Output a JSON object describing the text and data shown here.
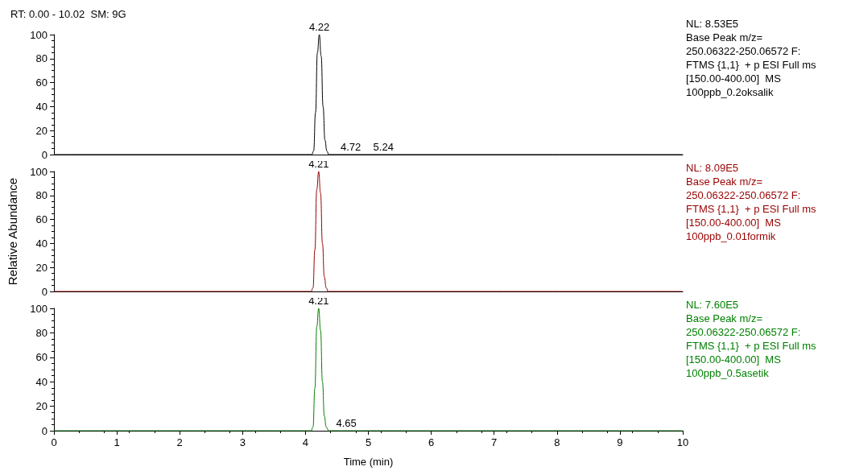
{
  "chart_data": [
    {
      "type": "line",
      "title": "RT: 0.00 - 10.02  SM: 9G",
      "x": [
        0,
        4.1,
        4.13,
        4.16,
        4.19,
        4.22,
        4.25,
        4.28,
        4.31,
        4.34,
        4.37,
        10
      ],
      "series": [
        {
          "color": "#000000",
          "values": [
            0,
            0,
            3,
            35,
            85,
            100,
            82,
            40,
            12,
            3,
            0,
            0
          ]
        }
      ],
      "xlim": [
        0,
        10
      ],
      "xticks": [
        0,
        1,
        2,
        3,
        4,
        5,
        6,
        7,
        8,
        9,
        10
      ],
      "ylim": [
        0,
        100
      ],
      "yticks": [
        0,
        20,
        40,
        60,
        80,
        100
      ],
      "tick_labels": "y",
      "annotations": [
        {
          "text": "4.22",
          "x": 4.22,
          "y": 100
        },
        {
          "text": "4.72",
          "x": 4.72,
          "y": 0
        },
        {
          "text": "5.24",
          "x": 5.24,
          "y": 0
        },
        "NL: 8.53E5\nBase Peak m/z=\n250.06322-250.06572 F:\nFTMS {1,1}  + p ESI Full ms\n[150.00-400.00]  MS\n100ppb_0.2oksalik"
      ]
    },
    {
      "type": "line",
      "ylabel": "Relative Abundance",
      "x": [
        0,
        4.09,
        4.12,
        4.15,
        4.18,
        4.21,
        4.24,
        4.27,
        4.3,
        4.33,
        4.36,
        10
      ],
      "series": [
        {
          "color": "#990000",
          "values": [
            0,
            0,
            3,
            35,
            85,
            100,
            82,
            40,
            12,
            3,
            0,
            0
          ]
        }
      ],
      "xlim": [
        0,
        10
      ],
      "xticks": [
        0,
        1,
        2,
        3,
        4,
        5,
        6,
        7,
        8,
        9,
        10
      ],
      "ylim": [
        0,
        100
      ],
      "yticks": [
        0,
        20,
        40,
        60,
        80,
        100
      ],
      "tick_labels": "y",
      "annotations": [
        {
          "text": "4.21",
          "x": 4.21,
          "y": 100
        },
        "NL: 8.09E5\nBase Peak m/z=\n250.06322-250.06572 F:\nFTMS {1,1}  + p ESI Full ms\n[150.00-400.00]  MS\n100ppb_0.01formik"
      ]
    },
    {
      "type": "line",
      "xlabel": "Time (min)",
      "x": [
        0,
        4.09,
        4.12,
        4.15,
        4.18,
        4.21,
        4.24,
        4.27,
        4.3,
        4.33,
        4.37,
        10
      ],
      "series": [
        {
          "color": "#008000",
          "values": [
            0,
            0,
            3,
            35,
            85,
            100,
            82,
            40,
            12,
            3,
            0,
            0
          ]
        }
      ],
      "xlim": [
        0,
        10
      ],
      "xticks": [
        0,
        1,
        2,
        3,
        4,
        5,
        6,
        7,
        8,
        9,
        10
      ],
      "ylim": [
        0,
        100
      ],
      "yticks": [
        0,
        20,
        40,
        60,
        80,
        100
      ],
      "annotations": [
        {
          "text": "4.21",
          "x": 4.21,
          "y": 100
        },
        {
          "text": "4.65",
          "x": 4.65,
          "y": 0
        },
        "NL: 7.60E5\nBase Peak m/z=\n250.06322-250.06572 F:\nFTMS {1,1}  + p ESI Full ms\n[150.00-400.00]  MS\n100ppb_0.5asetik"
      ]
    }
  ]
}
